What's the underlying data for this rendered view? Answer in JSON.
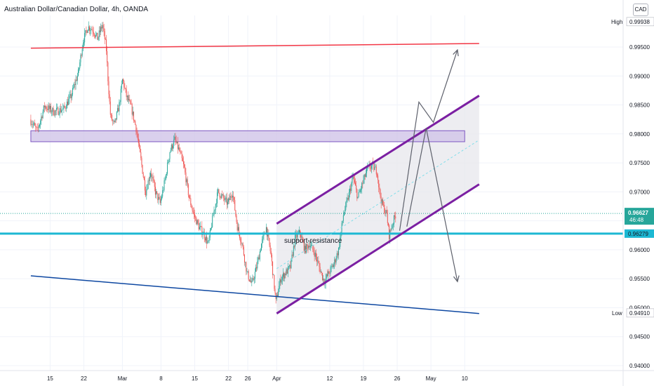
{
  "header": {
    "title": "Australian Dollar/Canadian Dollar, 4h, OANDA",
    "currency": "CAD"
  },
  "chart_data": {
    "type": "candlestick",
    "symbol": "AUDCAD",
    "timeframe": "4h",
    "source": "OANDA",
    "ylim": [
      0.93915,
      1.00045
    ],
    "y_ticks": [
      "0.94000",
      "0.94500",
      "0.95000",
      "0.95500",
      "0.96000",
      "0.96500",
      "0.97000",
      "0.97500",
      "0.98000",
      "0.98500",
      "0.99000",
      "0.99500"
    ],
    "x_ticks": [
      {
        "label": "15",
        "d": -16
      },
      {
        "label": "22",
        "d": -9
      },
      {
        "label": "Mar",
        "d": -1
      },
      {
        "label": "8",
        "d": 7
      },
      {
        "label": "15",
        "d": 14
      },
      {
        "label": "22",
        "d": 21
      },
      {
        "label": "26",
        "d": 25
      },
      {
        "label": "Apr",
        "d": 31
      },
      {
        "label": "12",
        "d": 42
      },
      {
        "label": "19",
        "d": 49
      },
      {
        "label": "26",
        "d": 56
      },
      {
        "label": "May",
        "d": 63
      },
      {
        "label": "10",
        "d": 70
      }
    ],
    "price_path": [
      {
        "d": -20.0,
        "p": 0.9825
      },
      {
        "d": -18.5,
        "p": 0.9805
      },
      {
        "d": -17.0,
        "p": 0.9848
      },
      {
        "d": -15.0,
        "p": 0.9838
      },
      {
        "d": -13.0,
        "p": 0.9843
      },
      {
        "d": -11.5,
        "p": 0.9865
      },
      {
        "d": -10.0,
        "p": 0.9905
      },
      {
        "d": -9.0,
        "p": 0.996
      },
      {
        "d": -8.0,
        "p": 0.9985
      },
      {
        "d": -7.0,
        "p": 0.998
      },
      {
        "d": -6.0,
        "p": 0.9965
      },
      {
        "d": -5.0,
        "p": 0.9988
      },
      {
        "d": -4.2,
        "p": 0.995
      },
      {
        "d": -3.8,
        "p": 0.989
      },
      {
        "d": -3.3,
        "p": 0.983
      },
      {
        "d": -2.5,
        "p": 0.9815
      },
      {
        "d": -1.5,
        "p": 0.985
      },
      {
        "d": -0.8,
        "p": 0.9895
      },
      {
        "d": 0.0,
        "p": 0.9865
      },
      {
        "d": 1.0,
        "p": 0.9845
      },
      {
        "d": 2.0,
        "p": 0.981
      },
      {
        "d": 3.0,
        "p": 0.9755
      },
      {
        "d": 4.0,
        "p": 0.97
      },
      {
        "d": 5.0,
        "p": 0.9735
      },
      {
        "d": 6.0,
        "p": 0.97
      },
      {
        "d": 7.0,
        "p": 0.968
      },
      {
        "d": 8.0,
        "p": 0.972
      },
      {
        "d": 9.0,
        "p": 0.977
      },
      {
        "d": 10.0,
        "p": 0.979
      },
      {
        "d": 11.0,
        "p": 0.977
      },
      {
        "d": 12.0,
        "p": 0.974
      },
      {
        "d": 13.0,
        "p": 0.969
      },
      {
        "d": 14.0,
        "p": 0.966
      },
      {
        "d": 15.0,
        "p": 0.964
      },
      {
        "d": 16.0,
        "p": 0.9628
      },
      {
        "d": 17.0,
        "p": 0.961
      },
      {
        "d": 18.0,
        "p": 0.966
      },
      {
        "d": 19.0,
        "p": 0.97
      },
      {
        "d": 20.0,
        "p": 0.969
      },
      {
        "d": 21.0,
        "p": 0.968
      },
      {
        "d": 22.0,
        "p": 0.97
      },
      {
        "d": 23.0,
        "p": 0.964
      },
      {
        "d": 24.0,
        "p": 0.961
      },
      {
        "d": 25.0,
        "p": 0.956
      },
      {
        "d": 26.0,
        "p": 0.954
      },
      {
        "d": 27.0,
        "p": 0.957
      },
      {
        "d": 28.0,
        "p": 0.961
      },
      {
        "d": 29.0,
        "p": 0.9638
      },
      {
        "d": 30.0,
        "p": 0.959
      },
      {
        "d": 31.0,
        "p": 0.951
      },
      {
        "d": 32.0,
        "p": 0.955
      },
      {
        "d": 33.0,
        "p": 0.956
      },
      {
        "d": 34.0,
        "p": 0.957
      },
      {
        "d": 35.0,
        "p": 0.962
      },
      {
        "d": 36.0,
        "p": 0.963
      },
      {
        "d": 37.0,
        "p": 0.96
      },
      {
        "d": 38.0,
        "p": 0.961
      },
      {
        "d": 39.0,
        "p": 0.9595
      },
      {
        "d": 40.0,
        "p": 0.957
      },
      {
        "d": 41.0,
        "p": 0.9545
      },
      {
        "d": 42.0,
        "p": 0.956
      },
      {
        "d": 43.0,
        "p": 0.9575
      },
      {
        "d": 44.0,
        "p": 0.96
      },
      {
        "d": 45.0,
        "p": 0.966
      },
      {
        "d": 46.0,
        "p": 0.969
      },
      {
        "d": 47.0,
        "p": 0.9725
      },
      {
        "d": 48.0,
        "p": 0.969
      },
      {
        "d": 49.0,
        "p": 0.9715
      },
      {
        "d": 50.0,
        "p": 0.974
      },
      {
        "d": 51.0,
        "p": 0.9745
      },
      {
        "d": 52.0,
        "p": 0.9735
      },
      {
        "d": 52.5,
        "p": 0.97
      },
      {
        "d": 53.0,
        "p": 0.968
      },
      {
        "d": 54.0,
        "p": 0.966
      },
      {
        "d": 54.5,
        "p": 0.9625
      },
      {
        "d": 55.0,
        "p": 0.964
      },
      {
        "d": 55.8,
        "p": 0.966
      }
    ],
    "levels": {
      "high": {
        "label": "High",
        "value": "0.99938"
      },
      "last": {
        "value": "0.96627",
        "countdown": "46:48"
      },
      "support": {
        "value": "0.96279"
      },
      "low": {
        "label": "Low",
        "value": "0.94910"
      }
    },
    "support_label": "support-resistance",
    "drawings": {
      "red_resistance": [
        {
          "d": -20,
          "p": 0.9948
        },
        {
          "d": 73,
          "p": 0.9956
        }
      ],
      "blue_support": [
        {
          "d": -20,
          "p": 0.9555
        },
        {
          "d": 73,
          "p": 0.949
        }
      ],
      "support_line": 0.96279,
      "zone": {
        "d1": -20,
        "d2": 70,
        "p1": 0.98055,
        "p2": 0.97865
      },
      "channel_upper": [
        {
          "d": 31,
          "p": 0.9645
        },
        {
          "d": 73,
          "p": 0.9866
        }
      ],
      "channel_lower": [
        {
          "d": 31,
          "p": 0.949
        },
        {
          "d": 73,
          "p": 0.9713
        }
      ],
      "channel_mid": [
        {
          "d": 31,
          "p": 0.95675
        },
        {
          "d": 73,
          "p": 0.97895
        }
      ],
      "projection_up": [
        {
          "d": 56.5,
          "p": 0.9633
        },
        {
          "d": 60.5,
          "p": 0.9855
        },
        {
          "d": 63.5,
          "p": 0.982
        },
        {
          "d": 68.5,
          "p": 0.9945
        }
      ],
      "projection_down": [
        {
          "d": 58,
          "p": 0.964
        },
        {
          "d": 62,
          "p": 0.981
        },
        {
          "d": 68.5,
          "p": 0.9545
        }
      ]
    },
    "colors": {
      "up": "#26a69a",
      "down": "#ef5350",
      "resistance": "#f23645",
      "support_blue": "#0d47a1",
      "support_cyan": "#1cb8d3",
      "channel": "#7b1fa2",
      "zone_fill": "#d1c4e9",
      "zone_stroke": "#7e57c2",
      "projection": "#5d606b"
    }
  }
}
